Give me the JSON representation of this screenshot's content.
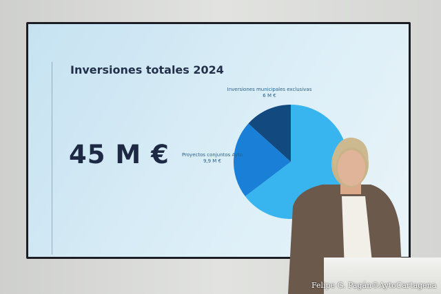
{
  "slide": {
    "title": "Inversiones totales 2024",
    "total": "45 M €"
  },
  "chart_data": {
    "type": "pie",
    "title": "Inversiones totales 2024",
    "slices": [
      {
        "label": "Inversiones municipales exclusivas",
        "value_label": "6 M €",
        "value": 6,
        "color": "#12497e"
      },
      {
        "label": "Proyectos conjuntos Ayto",
        "value_label": "9,9 M €",
        "value": 9.9,
        "color": "#1a7fd6"
      },
      {
        "label": "",
        "value_label": "",
        "value": 29.1,
        "color": "#38b4ee"
      }
    ]
  },
  "watermark": "Felipe G. Pagán©AytoCartagena"
}
